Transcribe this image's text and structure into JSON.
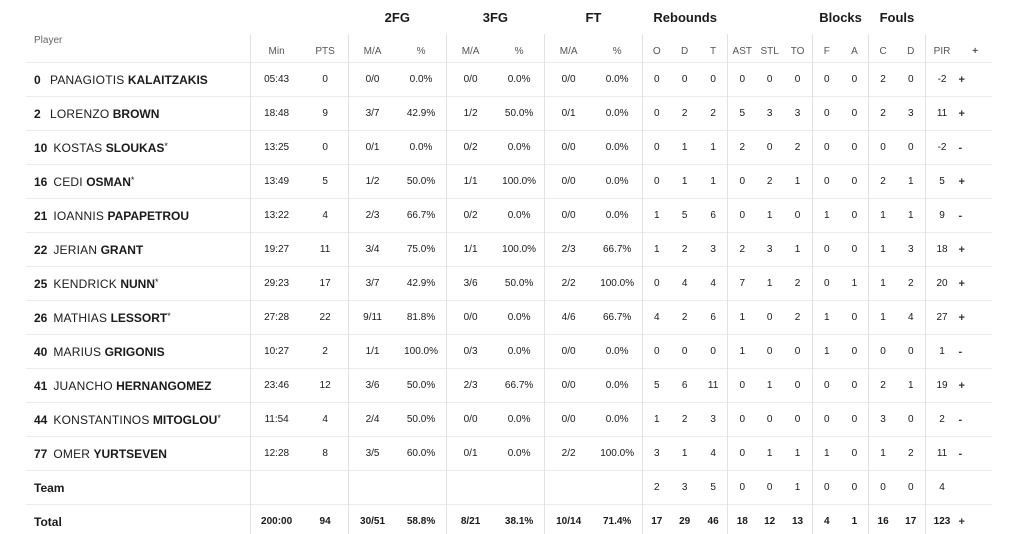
{
  "groups": {
    "fg2": "2FG",
    "fg3": "3FG",
    "ft": "FT",
    "rebounds": "Rebounds",
    "blocks": "Blocks",
    "fouls": "Fouls"
  },
  "headers": {
    "player": "Player",
    "min": "Min",
    "pts": "PTS",
    "fg2_ma": "M/A",
    "fg2_pct": "%",
    "fg3_ma": "M/A",
    "fg3_pct": "%",
    "ft_ma": "M/A",
    "ft_pct": "%",
    "o": "O",
    "d": "D",
    "t": "T",
    "ast": "AST",
    "stl": "STL",
    "to": "TO",
    "f": "F",
    "a": "A",
    "c": "C",
    "dd": "D",
    "pir": "PIR",
    "plus": "+"
  },
  "players": [
    {
      "num": "0",
      "first": "PANAGIOTIS",
      "last": "KALAITZAKIS",
      "star": "",
      "min": "05:43",
      "pts": "0",
      "fg2": "0/0",
      "fg2p": "0.0%",
      "fg3": "0/0",
      "fg3p": "0.0%",
      "ft": "0/0",
      "ftp": "0.0%",
      "o": "0",
      "d": "0",
      "t": "0",
      "ast": "0",
      "stl": "0",
      "to": "0",
      "bf": "0",
      "ba": "0",
      "fc": "2",
      "fd": "0",
      "pir": "-2",
      "pm": "+"
    },
    {
      "num": "2",
      "first": "LORENZO",
      "last": "BROWN",
      "star": "",
      "min": "18:48",
      "pts": "9",
      "fg2": "3/7",
      "fg2p": "42.9%",
      "fg3": "1/2",
      "fg3p": "50.0%",
      "ft": "0/1",
      "ftp": "0.0%",
      "o": "0",
      "d": "2",
      "t": "2",
      "ast": "5",
      "stl": "3",
      "to": "3",
      "bf": "0",
      "ba": "0",
      "fc": "2",
      "fd": "3",
      "pir": "11",
      "pm": "+"
    },
    {
      "num": "10",
      "first": "KOSTAS",
      "last": "SLOUKAS",
      "star": "*",
      "min": "13:25",
      "pts": "0",
      "fg2": "0/1",
      "fg2p": "0.0%",
      "fg3": "0/2",
      "fg3p": "0.0%",
      "ft": "0/0",
      "ftp": "0.0%",
      "o": "0",
      "d": "1",
      "t": "1",
      "ast": "2",
      "stl": "0",
      "to": "2",
      "bf": "0",
      "ba": "0",
      "fc": "0",
      "fd": "0",
      "pir": "-2",
      "pm": "-"
    },
    {
      "num": "16",
      "first": "CEDI",
      "last": "OSMAN",
      "star": "*",
      "min": "13:49",
      "pts": "5",
      "fg2": "1/2",
      "fg2p": "50.0%",
      "fg3": "1/1",
      "fg3p": "100.0%",
      "ft": "0/0",
      "ftp": "0.0%",
      "o": "0",
      "d": "1",
      "t": "1",
      "ast": "0",
      "stl": "2",
      "to": "1",
      "bf": "0",
      "ba": "0",
      "fc": "2",
      "fd": "1",
      "pir": "5",
      "pm": "+"
    },
    {
      "num": "21",
      "first": "IOANNIS",
      "last": "PAPAPETROU",
      "star": "",
      "min": "13:22",
      "pts": "4",
      "fg2": "2/3",
      "fg2p": "66.7%",
      "fg3": "0/2",
      "fg3p": "0.0%",
      "ft": "0/0",
      "ftp": "0.0%",
      "o": "1",
      "d": "5",
      "t": "6",
      "ast": "0",
      "stl": "1",
      "to": "0",
      "bf": "1",
      "ba": "0",
      "fc": "1",
      "fd": "1",
      "pir": "9",
      "pm": "-"
    },
    {
      "num": "22",
      "first": "JERIAN",
      "last": "GRANT",
      "star": "",
      "min": "19:27",
      "pts": "11",
      "fg2": "3/4",
      "fg2p": "75.0%",
      "fg3": "1/1",
      "fg3p": "100.0%",
      "ft": "2/3",
      "ftp": "66.7%",
      "o": "1",
      "d": "2",
      "t": "3",
      "ast": "2",
      "stl": "3",
      "to": "1",
      "bf": "0",
      "ba": "0",
      "fc": "1",
      "fd": "3",
      "pir": "18",
      "pm": "+"
    },
    {
      "num": "25",
      "first": "KENDRICK",
      "last": "NUNN",
      "star": "*",
      "min": "29:23",
      "pts": "17",
      "fg2": "3/7",
      "fg2p": "42.9%",
      "fg3": "3/6",
      "fg3p": "50.0%",
      "ft": "2/2",
      "ftp": "100.0%",
      "o": "0",
      "d": "4",
      "t": "4",
      "ast": "7",
      "stl": "1",
      "to": "2",
      "bf": "0",
      "ba": "1",
      "fc": "1",
      "fd": "2",
      "pir": "20",
      "pm": "+"
    },
    {
      "num": "26",
      "first": "MATHIAS",
      "last": "LESSORT",
      "star": "*",
      "min": "27:28",
      "pts": "22",
      "fg2": "9/11",
      "fg2p": "81.8%",
      "fg3": "0/0",
      "fg3p": "0.0%",
      "ft": "4/6",
      "ftp": "66.7%",
      "o": "4",
      "d": "2",
      "t": "6",
      "ast": "1",
      "stl": "0",
      "to": "2",
      "bf": "1",
      "ba": "0",
      "fc": "1",
      "fd": "4",
      "pir": "27",
      "pm": "+"
    },
    {
      "num": "40",
      "first": "MARIUS",
      "last": "GRIGONIS",
      "star": "",
      "min": "10:27",
      "pts": "2",
      "fg2": "1/1",
      "fg2p": "100.0%",
      "fg3": "0/3",
      "fg3p": "0.0%",
      "ft": "0/0",
      "ftp": "0.0%",
      "o": "0",
      "d": "0",
      "t": "0",
      "ast": "1",
      "stl": "0",
      "to": "0",
      "bf": "1",
      "ba": "0",
      "fc": "0",
      "fd": "0",
      "pir": "1",
      "pm": "-"
    },
    {
      "num": "41",
      "first": "JUANCHO",
      "last": "HERNANGOMEZ",
      "star": "",
      "min": "23:46",
      "pts": "12",
      "fg2": "3/6",
      "fg2p": "50.0%",
      "fg3": "2/3",
      "fg3p": "66.7%",
      "ft": "0/0",
      "ftp": "0.0%",
      "o": "5",
      "d": "6",
      "t": "11",
      "ast": "0",
      "stl": "1",
      "to": "0",
      "bf": "0",
      "ba": "0",
      "fc": "2",
      "fd": "1",
      "pir": "19",
      "pm": "+"
    },
    {
      "num": "44",
      "first": "KONSTANTINOS",
      "last": "MITOGLOU",
      "star": "*",
      "min": "11:54",
      "pts": "4",
      "fg2": "2/4",
      "fg2p": "50.0%",
      "fg3": "0/0",
      "fg3p": "0.0%",
      "ft": "0/0",
      "ftp": "0.0%",
      "o": "1",
      "d": "2",
      "t": "3",
      "ast": "0",
      "stl": "0",
      "to": "0",
      "bf": "0",
      "ba": "0",
      "fc": "3",
      "fd": "0",
      "pir": "2",
      "pm": "-"
    },
    {
      "num": "77",
      "first": "OMER",
      "last": "YURTSEVEN",
      "star": "",
      "min": "12:28",
      "pts": "8",
      "fg2": "3/5",
      "fg2p": "60.0%",
      "fg3": "0/1",
      "fg3p": "0.0%",
      "ft": "2/2",
      "ftp": "100.0%",
      "o": "3",
      "d": "1",
      "t": "4",
      "ast": "0",
      "stl": "1",
      "to": "1",
      "bf": "1",
      "ba": "0",
      "fc": "1",
      "fd": "2",
      "pir": "11",
      "pm": "-"
    }
  ],
  "team": {
    "label": "Team",
    "o": "2",
    "d": "3",
    "t": "5",
    "ast": "0",
    "stl": "0",
    "to": "1",
    "bf": "0",
    "ba": "0",
    "fc": "0",
    "fd": "0",
    "pir": "4"
  },
  "total": {
    "label": "Total",
    "min": "200:00",
    "pts": "94",
    "fg2": "30/51",
    "fg2p": "58.8%",
    "fg3": "8/21",
    "fg3p": "38.1%",
    "ft": "10/14",
    "ftp": "71.4%",
    "o": "17",
    "d": "29",
    "t": "46",
    "ast": "18",
    "stl": "12",
    "to": "13",
    "bf": "4",
    "ba": "1",
    "fc": "16",
    "fd": "17",
    "pir": "123",
    "pm": "+"
  }
}
